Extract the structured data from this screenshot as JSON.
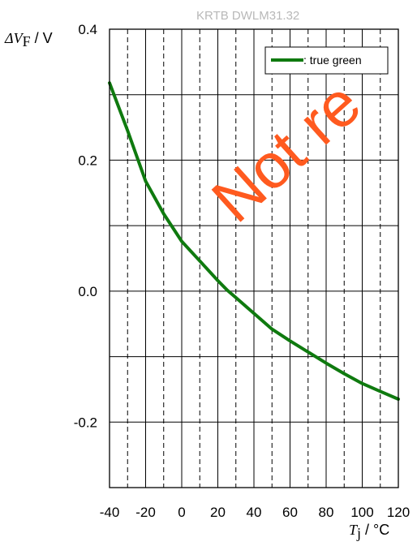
{
  "document_code": "KRTB DWLM31.32",
  "watermark": "Not re",
  "colors": {
    "series": "#0f7a0f",
    "watermark": "#ff5a1f",
    "grid": "#000000"
  },
  "chart_data": {
    "type": "line",
    "ylabel": {
      "symbol": "ΔV",
      "subscript": "F",
      "unit": " / V"
    },
    "xlabel": {
      "symbol": "T",
      "subscript": "j",
      "unit": " / °C"
    },
    "xlim": [
      -40,
      120
    ],
    "ylim": [
      -0.3,
      0.4
    ],
    "x_major_ticks": [
      -40,
      -20,
      0,
      20,
      40,
      60,
      80,
      100,
      120
    ],
    "x_tick_labels": [
      "-40",
      "-20",
      "0",
      "20",
      "40",
      "60",
      "80",
      "100",
      "120"
    ],
    "x_minor_dashed": [
      -30,
      -10,
      10,
      30,
      50,
      70,
      90,
      110
    ],
    "y_grid": [
      -0.3,
      -0.2,
      -0.1,
      0.0,
      0.1,
      0.2,
      0.3,
      0.4
    ],
    "y_tick_values": [
      -0.2,
      0.0,
      0.2,
      0.4
    ],
    "y_tick_labels": [
      "-0.2",
      "0.0",
      "0.2",
      "0.4"
    ],
    "grid": true,
    "legend_position": "top-right",
    "series": [
      {
        "name": ": true green",
        "x": [
          -40,
          -30,
          -20,
          -10,
          0,
          10,
          20,
          25,
          30,
          40,
          50,
          60,
          70,
          80,
          90,
          100,
          110,
          120
        ],
        "y": [
          0.318,
          0.245,
          0.168,
          0.118,
          0.076,
          0.046,
          0.016,
          0.002,
          -0.01,
          -0.034,
          -0.058,
          -0.076,
          -0.093,
          -0.11,
          -0.126,
          -0.141,
          -0.153,
          -0.165
        ]
      }
    ]
  }
}
